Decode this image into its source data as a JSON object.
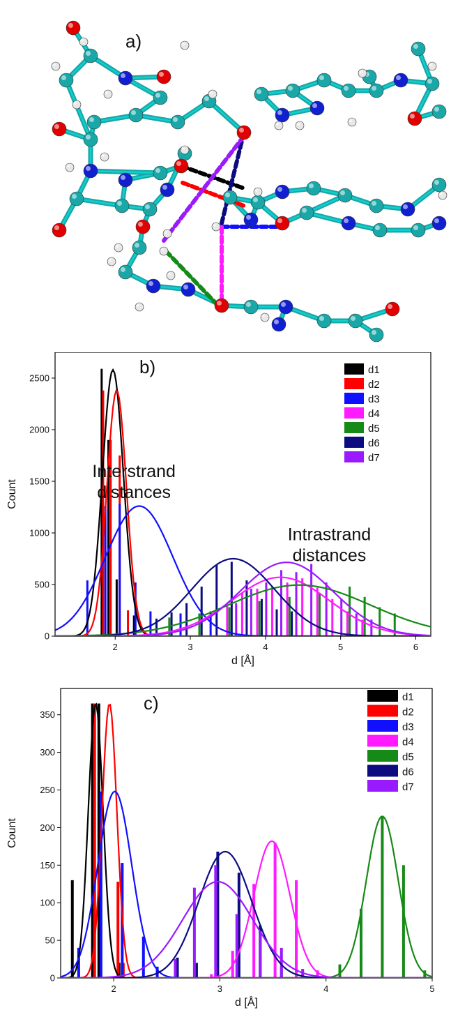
{
  "colors": {
    "d1": "#000000",
    "d2": "#ff0000",
    "d3": "#1010ff",
    "d4": "#ff1aff",
    "d5": "#168a16",
    "d6": "#0c0c80",
    "d7": "#9a1aff",
    "cyan_atom": "#19a7a7",
    "red_atom": "#e00000",
    "blue_atom": "#1020d0",
    "white_atom": "#e8e8e8"
  },
  "panel_a": {
    "label": "a)",
    "image": "molecular-structure-hydrogen-bond-distances"
  },
  "chart_data": [
    {
      "panel_label": "b)",
      "type": "bar",
      "xlabel": "d [Å]",
      "ylabel": "Count",
      "xlim": [
        1.2,
        6.2
      ],
      "ylim": [
        0,
        2750
      ],
      "xticks": [
        2,
        3,
        4,
        5,
        6
      ],
      "yticks": [
        0,
        500,
        1000,
        1500,
        2000,
        2500
      ],
      "grid": false,
      "legend_position": "top-right",
      "legend": [
        "d1",
        "d2",
        "d3",
        "d4",
        "d5",
        "d6",
        "d7"
      ],
      "annotations": [
        {
          "text": [
            "Interstrand",
            "distances"
          ],
          "x": 2.25,
          "y": 1540
        },
        {
          "text": [
            "Intrastrand",
            "distances"
          ],
          "x": 4.85,
          "y": 930
        }
      ],
      "series": [
        {
          "name": "d1",
          "bars": [
            [
              1.82,
              2590
            ],
            [
              1.91,
              1900
            ],
            [
              2.02,
              550
            ],
            [
              2.25,
              200
            ]
          ],
          "fit": {
            "mu": 1.97,
            "sigma": 0.14,
            "amp": 2580
          }
        },
        {
          "name": "d2",
          "bars": [
            [
              1.84,
              2380
            ],
            [
              1.94,
              1900
            ],
            [
              2.06,
              1750
            ],
            [
              2.17,
              250
            ]
          ],
          "fit": {
            "mu": 2.02,
            "sigma": 0.13,
            "amp": 2380
          }
        },
        {
          "name": "d3",
          "bars": [
            [
              1.63,
              540
            ],
            [
              1.87,
              1260
            ],
            [
              2.06,
              1280
            ],
            [
              2.27,
              520
            ],
            [
              2.47,
              240
            ],
            [
              2.87,
              220
            ],
            [
              3.27,
              240
            ]
          ],
          "fit": {
            "mu": 2.32,
            "sigma": 0.45,
            "amp": 1260
          }
        },
        {
          "name": "d4",
          "bars": [
            [
              3.49,
              300
            ],
            [
              3.69,
              420
            ],
            [
              3.89,
              460
            ],
            [
              4.09,
              480
            ],
            [
              4.29,
              520
            ],
            [
              4.49,
              560
            ],
            [
              4.69,
              470
            ],
            [
              4.89,
              360
            ],
            [
              5.09,
              240
            ],
            [
              5.29,
              160
            ]
          ],
          "fit": {
            "mu": 4.2,
            "sigma": 0.65,
            "amp": 570
          }
        },
        {
          "name": "d5",
          "bars": [
            [
              2.72,
              180
            ],
            [
              3.12,
              220
            ],
            [
              3.52,
              280
            ],
            [
              3.92,
              340
            ],
            [
              4.32,
              380
            ],
            [
              4.72,
              420
            ],
            [
              5.12,
              480
            ],
            [
              5.32,
              380
            ],
            [
              5.52,
              280
            ],
            [
              5.72,
              220
            ]
          ],
          "fit": {
            "mu": 4.45,
            "sigma": 0.95,
            "amp": 495
          }
        },
        {
          "name": "d6",
          "bars": [
            [
              2.55,
              170
            ],
            [
              2.75,
              230
            ],
            [
              2.95,
              320
            ],
            [
              3.15,
              480
            ],
            [
              3.35,
              690
            ],
            [
              3.55,
              720
            ],
            [
              3.75,
              540
            ],
            [
              3.95,
              360
            ],
            [
              4.15,
              260
            ],
            [
              4.35,
              240
            ]
          ],
          "fit": {
            "mu": 3.57,
            "sigma": 0.55,
            "amp": 750
          }
        },
        {
          "name": "d7",
          "bars": [
            [
              3.61,
              320
            ],
            [
              3.81,
              460
            ],
            [
              4.01,
              520
            ],
            [
              4.21,
              640
            ],
            [
              4.41,
              620
            ],
            [
              4.61,
              700
            ],
            [
              4.81,
              520
            ],
            [
              5.01,
              360
            ],
            [
              5.21,
              220
            ],
            [
              5.41,
              160
            ]
          ],
          "fit": {
            "mu": 4.28,
            "sigma": 0.62,
            "amp": 715
          }
        }
      ]
    },
    {
      "panel_label": "c)",
      "type": "bar",
      "xlabel": "d [Å]",
      "ylabel": "Count",
      "xlim": [
        1.5,
        5.0
      ],
      "ylim": [
        0,
        385
      ],
      "xticks": [
        2,
        3,
        4,
        5
      ],
      "yticks": [
        0,
        50,
        100,
        150,
        200,
        250,
        300,
        350
      ],
      "grid": false,
      "legend_position": "top-right",
      "legend": [
        "d1",
        "d2",
        "d3",
        "d4",
        "d5",
        "d6",
        "d7"
      ],
      "series": [
        {
          "name": "d1",
          "bars": [
            [
              1.61,
              130
            ],
            [
              1.8,
              365
            ],
            [
              1.86,
              365
            ],
            [
              2.05,
              20
            ]
          ],
          "fit": {
            "mu": 1.83,
            "sigma": 0.07,
            "amp": 365
          }
        },
        {
          "name": "d2",
          "bars": [
            [
              1.82,
              365
            ],
            [
              2.04,
              128
            ],
            [
              2.09,
              20
            ]
          ],
          "fit": {
            "mu": 1.96,
            "sigma": 0.07,
            "amp": 365
          }
        },
        {
          "name": "d3",
          "bars": [
            [
              1.67,
              40
            ],
            [
              1.88,
              248
            ],
            [
              2.08,
              153
            ],
            [
              2.28,
              55
            ],
            [
              2.41,
              15
            ]
          ],
          "fit": {
            "mu": 2.01,
            "sigma": 0.16,
            "amp": 248
          }
        },
        {
          "name": "d4",
          "bars": [
            [
              2.92,
              5
            ],
            [
              3.12,
              36
            ],
            [
              3.32,
              125
            ],
            [
              3.52,
              180
            ],
            [
              3.72,
              130
            ],
            [
              3.92,
              10
            ]
          ],
          "fit": {
            "mu": 3.49,
            "sigma": 0.17,
            "amp": 182
          }
        },
        {
          "name": "d5",
          "bars": [
            [
              4.13,
              18
            ],
            [
              4.33,
              92
            ],
            [
              4.53,
              215
            ],
            [
              4.73,
              150
            ],
            [
              4.93,
              10
            ]
          ],
          "fit": {
            "mu": 4.53,
            "sigma": 0.15,
            "amp": 215
          }
        },
        {
          "name": "d6",
          "bars": [
            [
              2.6,
              27
            ],
            [
              2.78,
              20
            ],
            [
              2.98,
              168
            ],
            [
              3.18,
              140
            ],
            [
              3.38,
              70
            ],
            [
              3.58,
              15
            ]
          ],
          "fit": {
            "mu": 3.05,
            "sigma": 0.25,
            "amp": 168
          }
        },
        {
          "name": "d7",
          "bars": [
            [
              2.58,
              25
            ],
            [
              2.76,
              120
            ],
            [
              2.96,
              150
            ],
            [
              3.16,
              85
            ],
            [
              3.38,
              60
            ],
            [
              3.58,
              40
            ],
            [
              3.78,
              12
            ]
          ],
          "fit": {
            "mu": 2.98,
            "sigma": 0.33,
            "amp": 128
          }
        }
      ]
    }
  ]
}
